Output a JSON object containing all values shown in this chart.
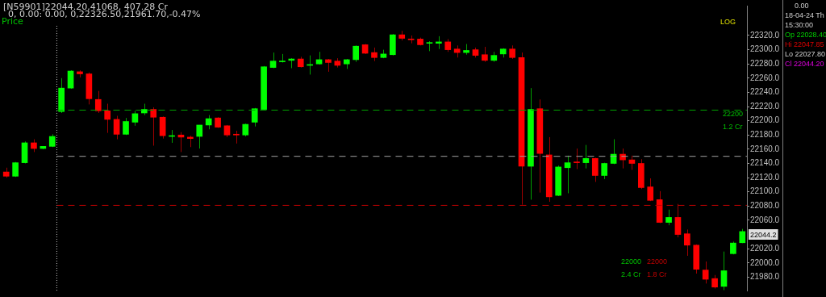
{
  "chart_data": {
    "type": "candlestick",
    "title": "[N59901]22044.20,41068, 407.28 Cr",
    "subtitle": "0, 0.00: 0.00, 0,22326.50,21961.70,-0.47%",
    "categories": [
      null,
      null,
      null,
      null,
      null,
      null,
      null,
      null,
      null,
      null,
      null,
      null,
      null,
      null,
      null,
      null,
      null,
      null,
      null,
      null,
      null,
      null,
      null,
      null,
      null,
      null,
      null,
      null,
      null,
      null,
      null,
      null,
      null,
      null,
      null,
      null,
      null,
      null,
      null,
      null,
      null,
      null,
      null,
      null,
      null,
      null,
      null,
      null,
      null,
      null,
      null,
      null,
      null,
      null,
      null,
      null,
      null,
      null,
      null,
      null,
      null,
      null,
      null,
      null,
      null,
      null,
      null,
      null,
      null,
      null,
      null,
      null,
      null,
      null,
      null,
      null,
      null,
      null,
      null,
      null,
      null
    ],
    "ohlc": [
      [
        22128,
        22134,
        22120,
        22122
      ],
      [
        22122,
        22142,
        22121,
        22141
      ],
      [
        22141,
        22171,
        22140,
        22169
      ],
      [
        22169,
        22174,
        22156,
        22161
      ],
      [
        22161,
        22164,
        22160,
        22164
      ],
      [
        22164,
        22181,
        22163,
        22178
      ],
      [
        22213,
        22260,
        22211,
        22246
      ],
      [
        22246,
        22271,
        22245,
        22270
      ],
      [
        22269,
        22271,
        22261,
        22266
      ],
      [
        22266,
        22268,
        22223,
        22231
      ],
      [
        22230,
        22242,
        22211,
        22214
      ],
      [
        22214,
        22224,
        22183,
        22202
      ],
      [
        22202,
        22207,
        22174,
        22181
      ],
      [
        22181,
        22204,
        22180,
        22199
      ],
      [
        22198,
        22214,
        22193,
        22210
      ],
      [
        22211,
        22224,
        22208,
        22216
      ],
      [
        22216,
        22219,
        22165,
        22205
      ],
      [
        22205,
        22206,
        22175,
        22179
      ],
      [
        22178,
        22187,
        22169,
        22179
      ],
      [
        22180,
        22184,
        22156,
        22177
      ],
      [
        22177,
        22179,
        22163,
        22175
      ],
      [
        22178,
        22194,
        22161,
        22194
      ],
      [
        22194,
        22208,
        22188,
        22203
      ],
      [
        22204,
        22205,
        22190,
        22191
      ],
      [
        22193,
        22194,
        22177,
        22180
      ],
      [
        22181,
        22186,
        22168,
        22180
      ],
      [
        22180,
        22196,
        22178,
        22195
      ],
      [
        22198,
        22218,
        22192,
        22217
      ],
      [
        22216,
        22277,
        22215,
        22276
      ],
      [
        22275,
        22296,
        22274,
        22284
      ],
      [
        22283,
        22294,
        22282,
        22284
      ],
      [
        22285,
        22288,
        22274,
        22287
      ],
      [
        22287,
        22290,
        22275,
        22276
      ],
      [
        22278,
        22292,
        22265,
        22279
      ],
      [
        22280,
        22297,
        22279,
        22286
      ],
      [
        22286,
        22287,
        22269,
        22282
      ],
      [
        22284,
        22288,
        22275,
        22278
      ],
      [
        22280,
        22287,
        22273,
        22286
      ],
      [
        22286,
        22306,
        22283,
        22305
      ],
      [
        22307,
        22308,
        22294,
        22295
      ],
      [
        22296,
        22303,
        22284,
        22289
      ],
      [
        22289,
        22300,
        22288,
        22294
      ],
      [
        22293,
        22322,
        22292,
        22321
      ],
      [
        22321,
        22326.5,
        22313,
        22316
      ],
      [
        22315,
        22320,
        22309,
        22314
      ],
      [
        22315,
        22317,
        22306,
        22307
      ],
      [
        22309,
        22312,
        22298,
        22310
      ],
      [
        22309,
        22319,
        22301,
        22311
      ],
      [
        22311,
        22315,
        22297,
        22300
      ],
      [
        22301,
        22306,
        22289,
        22296
      ],
      [
        22296,
        22308,
        22293,
        22299
      ],
      [
        22300,
        22303,
        22289,
        22292
      ],
      [
        22293,
        22304,
        22283,
        22285
      ],
      [
        22285,
        22297,
        22283,
        22292
      ],
      [
        22294,
        22302,
        22289,
        22301
      ],
      [
        22301,
        22306,
        22287,
        22289
      ],
      [
        22289,
        22296,
        22082,
        22136
      ],
      [
        22136,
        22246,
        22089,
        22216
      ],
      [
        22217,
        22230,
        22099,
        22154
      ],
      [
        22152,
        22177,
        22086,
        22093
      ],
      [
        22095,
        22137,
        22094,
        22135
      ],
      [
        22134,
        22151,
        22098,
        22141
      ],
      [
        22142,
        22161,
        22132,
        22141
      ],
      [
        22141,
        22166,
        22133,
        22147
      ],
      [
        22147,
        22148,
        22114,
        22123
      ],
      [
        22123,
        22141,
        22118,
        22140
      ],
      [
        22140,
        22174,
        22139,
        22153
      ],
      [
        22153,
        22161,
        22133,
        22145
      ],
      [
        22145,
        22151,
        22131,
        22140
      ],
      [
        22140,
        22146,
        22104,
        22106
      ],
      [
        22107,
        22119,
        22087,
        22088
      ],
      [
        22089,
        22101,
        22056,
        22057
      ],
      [
        22057,
        22075,
        22053,
        22064
      ],
      [
        22064,
        22083,
        22036,
        22040
      ],
      [
        22041,
        22047,
        22010,
        22025
      ],
      [
        22025,
        22026,
        21985,
        21991
      ],
      [
        21990,
        22002,
        21971,
        21977
      ],
      [
        21978,
        21983,
        21964,
        21966
      ],
      [
        21967,
        22016,
        21961.7,
        21989
      ],
      [
        22013,
        22030,
        22012,
        22028
      ],
      [
        22028.4,
        22047.85,
        22027.8,
        22044.2
      ]
    ],
    "colors": [
      "#ff0000",
      "#00ff00",
      "#00ff00",
      "#ff0000",
      "#00ff00",
      "#00ff00",
      "#00ff00",
      "#00ff00",
      "#ff0000",
      "#ff0000",
      "#ff0000",
      "#ff0000",
      "#ff0000",
      "#00ff00",
      "#00ff00",
      "#00ff00",
      "#ff0000",
      "#ff0000",
      "#00ff00",
      "#ff0000",
      "#ff0000",
      "#00ff00",
      "#00ff00",
      "#ff0000",
      "#ff0000",
      "#ff0000",
      "#00ff00",
      "#00ff00",
      "#00ff00",
      "#00ff00",
      "#00ff00",
      "#00ff00",
      "#ff0000",
      "#00ff00",
      "#00ff00",
      "#ff0000",
      "#ff0000",
      "#00ff00",
      "#00ff00",
      "#ff0000",
      "#ff0000",
      "#00ff00",
      "#00ff00",
      "#ff0000",
      "#ff0000",
      "#ff0000",
      "#00ff00",
      "#00ff00",
      "#ff0000",
      "#ff0000",
      "#00ff00",
      "#ff0000",
      "#ff0000",
      "#00ff00",
      "#00ff00",
      "#ff0000",
      "#ff0000",
      "#00ff00",
      "#ff0000",
      "#ff0000",
      "#00ff00",
      "#00ff00",
      "#ff0000",
      "#00ff00",
      "#ff0000",
      "#00ff00",
      "#00ff00",
      "#ff0000",
      "#ff0000",
      "#ff0000",
      "#ff0000",
      "#ff0000",
      "#00ff00",
      "#ff0000",
      "#ff0000",
      "#ff0000",
      "#ff0000",
      "#ff0000",
      "#00ff00",
      "#00ff00",
      "#00ff00"
    ],
    "ylim": [
      21960,
      22362
    ],
    "yticks": [
      {
        "value": 22320,
        "label": "22320.0"
      },
      {
        "value": 22300,
        "label": "22300.0"
      },
      {
        "value": 22280,
        "label": "22280.0"
      },
      {
        "value": 22260,
        "label": "22260.0"
      },
      {
        "value": 22240,
        "label": "22240.0"
      },
      {
        "value": 22220,
        "label": "22220.0"
      },
      {
        "value": 22200,
        "label": "22200.0"
      },
      {
        "value": 22180,
        "label": "22180.0"
      },
      {
        "value": 22160,
        "label": "22160.0"
      },
      {
        "value": 22140,
        "label": "22140.0"
      },
      {
        "value": 22120,
        "label": "22120.0"
      },
      {
        "value": 22100,
        "label": "22100.0"
      },
      {
        "value": 22080,
        "label": "22080.0"
      },
      {
        "value": 22060,
        "label": "22060.0"
      },
      {
        "value": 22020,
        "label": "22020.0"
      },
      {
        "value": 22000,
        "label": "22000.0"
      },
      {
        "value": 21980,
        "label": "21980.0"
      }
    ],
    "tick_labels": "y",
    "ref_lines": [
      {
        "axis": "y",
        "value": 22215,
        "color": "#00a000",
        "line_style": "dashed"
      },
      {
        "axis": "y",
        "value": 22150,
        "color": "#a0a0a0",
        "line_style": "dashed"
      },
      {
        "axis": "y",
        "value": 22081,
        "color": "#c00000",
        "line_style": "dashed"
      }
    ],
    "annotations": [
      "Price",
      "LOG",
      "0.00",
      "18-04-24 Th",
      "15:30:00",
      "Op 22028.40",
      "Hi 22047.85",
      "Lo 22027.80",
      "Cl 22044.20",
      "22200",
      "1.2 Cr",
      "22000",
      "2.4 Cr",
      "22000",
      "1.8 Cr",
      "22044.2"
    ]
  }
}
